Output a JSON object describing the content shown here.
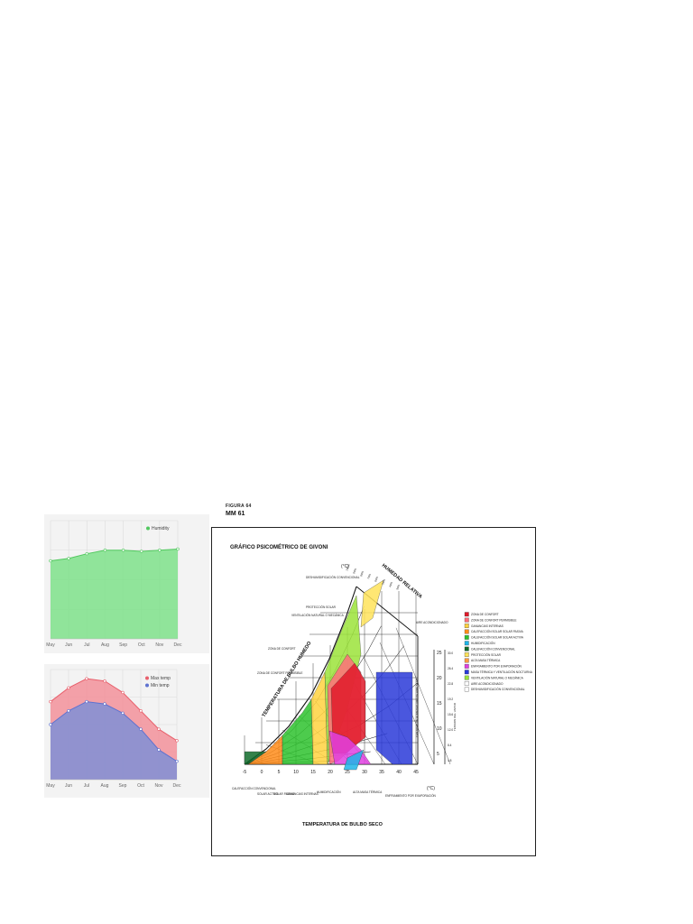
{
  "chart_data": [
    {
      "type": "area",
      "categories": [
        "May",
        "Jun",
        "Jul",
        "Aug",
        "Sep",
        "Oct",
        "Nov",
        "Dec"
      ],
      "series": [
        {
          "name": "Humidity",
          "values": [
            66,
            68,
            72,
            75,
            75,
            74,
            75,
            76
          ],
          "color": "#7ee08a"
        }
      ],
      "ylim": [
        0,
        100
      ],
      "grid": true,
      "legend": "top-right"
    },
    {
      "type": "area",
      "categories": [
        "May",
        "Jun",
        "Jul",
        "Aug",
        "Sep",
        "Oct",
        "Nov",
        "Dec"
      ],
      "series": [
        {
          "name": "Max temp",
          "values": [
            22,
            28,
            32,
            31,
            26,
            18,
            10,
            5
          ],
          "color": "#f2919a"
        },
        {
          "name": "Min temp",
          "values": [
            12,
            18,
            22,
            21,
            17,
            10,
            1,
            -4
          ],
          "color": "#7f8fd6"
        }
      ],
      "ylim": [
        -12,
        36
      ],
      "grid": true,
      "legend": "top-right"
    },
    {
      "type": "psychrometric",
      "caption_top": "FIGURA 64",
      "caption_id": "MM 61",
      "title": "GRÁFICO PSICOMÉTRICO DE GIVONI",
      "xlabel": "TEMPERATURA DE BULBO SECO",
      "diagonal_label": "TEMPERATURA DE BULBO HUMEDO",
      "rh_label": "HUMEDAD RELATIVA",
      "right_axis_label": "CANTIDAD DE HUMEDAD g/Kg DE AIRE SECO",
      "vapor_axis_label": "TENSION DEL VAPOR",
      "unit_top": "(°C)",
      "unit_right": "(°C)",
      "x_ticks": [
        "-5",
        "0",
        "5",
        "10",
        "15",
        "20",
        "25",
        "30",
        "35",
        "40",
        "45"
      ],
      "right_ticks": [
        "25",
        "20",
        "15",
        "10",
        "5"
      ],
      "vapor_ticks": [
        "30.0",
        "26.4",
        "22.8",
        "19.2",
        "15.6",
        "12.0",
        "8.4",
        "4.8"
      ],
      "rh_ticks": [
        "100%",
        "90%",
        "80%",
        "70%",
        "60%",
        "50%",
        "40%",
        "30%"
      ],
      "zones": [
        {
          "name": "ZONA DE CONFORT",
          "color": "#e01a2a"
        },
        {
          "name": "ZONA DE CONFORT PERMISIBLE",
          "color": "#ff6f7a"
        },
        {
          "name": "GANANCIAS INTERNAS",
          "color": "#ffd23f"
        },
        {
          "name": "CALEFACCIÓN SOLAR SOLAR PASIVA",
          "color": "#ff8c1a"
        },
        {
          "name": "CALEFACCIÓN SOLAR SOLAR ACTIVA",
          "color": "#2ec22e"
        },
        {
          "name": "HUMIDIFICACIÓN",
          "color": "#1fb5e8"
        },
        {
          "name": "CALEFACCIÓN CONVENCIONAL",
          "color": "#106b2a"
        },
        {
          "name": "PROTECCIÓN SOLAR",
          "color": "#ffe35a"
        },
        {
          "name": "ALTA MASA TÉRMICA",
          "color": "#ff9a40"
        },
        {
          "name": "ENFRIAMIENTO POR EVAPORACIÓN",
          "color": "#e040e0"
        },
        {
          "name": "MASA TÉRMICA Y VENTILACIÓN NOCTURNA",
          "color": "#2a3ad8"
        },
        {
          "name": "VENTILACIÓN NATURAL O MECÁNICA",
          "color": "#9be33a"
        },
        {
          "name": "AIRE ACONDICIONADO",
          "color": "#ffffff"
        },
        {
          "name": "DESHUMIDIFICACIÓN CONVENCIONAL",
          "color": "#ffffff"
        }
      ],
      "annotations": [
        "DESHUMIDIFICACIÓN CONVENCIONAL",
        "PROTECCIÓN SOLAR",
        "VENTILACIÓN NATURAL O MECÁNICA",
        "ZONA DE CONFORT",
        "ZONA DE CONFORT PERMISIBLE",
        "AIRE ACONDICIONADO",
        "CALEFACCIÓN CONVENCIONAL",
        "SOLAR ACTIVO",
        "SOLAR PASIVO",
        "GANANCIAS INTERNAS",
        "HUMIDIFICACIÓN",
        "ALTA MASA TÉRMICA",
        "ENFRIAMIENTO POR EVAPORACIÓN"
      ]
    }
  ]
}
